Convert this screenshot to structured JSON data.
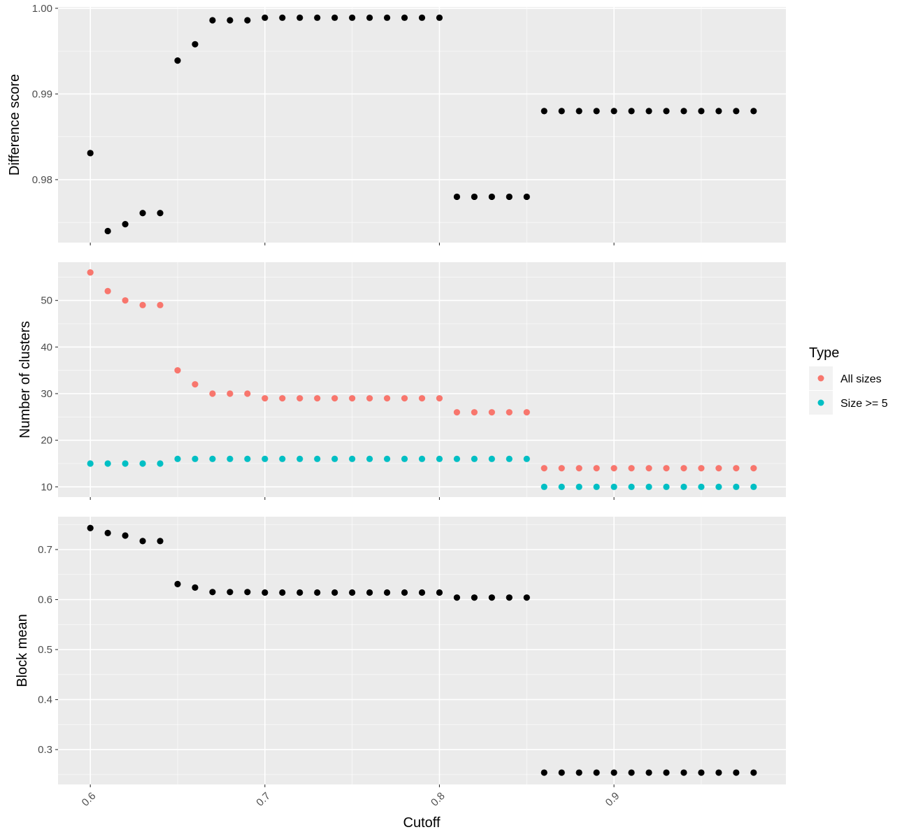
{
  "colors": {
    "panel_bg": "#EBEBEB",
    "grid": "#FFFFFF",
    "all_sizes": "#F8766D",
    "size_ge_5": "#00BFC4",
    "black": "#000000"
  },
  "legend": {
    "title": "Type",
    "items": [
      {
        "label": "All sizes",
        "color": "#F8766D"
      },
      {
        "label": "Size >= 5",
        "color": "#00BFC4"
      }
    ]
  },
  "chart_data": {
    "type": "scatter",
    "layout": "three vertically stacked facets sharing x axis",
    "xlabel": "Cutoff",
    "x_ticks": [
      "0.6",
      "0.7",
      "0.8",
      "0.9"
    ],
    "x_tick_values": [
      0.6,
      0.7,
      0.8,
      0.9
    ],
    "xlim": [
      0.5815,
      0.9985
    ],
    "x": [
      0.6,
      0.61,
      0.62,
      0.63,
      0.64,
      0.65,
      0.66,
      0.67,
      0.68,
      0.69,
      0.7,
      0.71,
      0.72,
      0.73,
      0.74,
      0.75,
      0.76,
      0.77,
      0.78,
      0.79,
      0.8,
      0.81,
      0.82,
      0.83,
      0.84,
      0.85,
      0.86,
      0.87,
      0.88,
      0.89,
      0.9,
      0.91,
      0.92,
      0.93,
      0.94,
      0.95,
      0.96,
      0.97,
      0.98
    ],
    "panels": [
      {
        "ylabel": "Difference score",
        "ylim": [
          0.97265,
          1.00015
        ],
        "y_ticks": [
          "0.98",
          "0.99",
          "1.00"
        ],
        "y_tick_values": [
          0.98,
          0.99,
          1.0
        ],
        "series": [
          {
            "color": "#000000",
            "values": [
              0.9831,
              0.974,
              0.9748,
              0.9761,
              0.9761,
              0.9939,
              0.9958,
              0.9986,
              0.9986,
              0.9986,
              0.9989,
              0.9989,
              0.9989,
              0.9989,
              0.9989,
              0.9989,
              0.9989,
              0.9989,
              0.9989,
              0.9989,
              0.9989,
              0.978,
              0.978,
              0.978,
              0.978,
              0.978,
              0.988,
              0.988,
              0.988,
              0.988,
              0.988,
              0.988,
              0.988,
              0.988,
              0.988,
              0.988,
              0.988,
              0.988,
              0.988
            ]
          }
        ]
      },
      {
        "ylabel": "Number of clusters",
        "ylim": [
          7.8,
          58.2
        ],
        "y_ticks": [
          "10",
          "20",
          "30",
          "40",
          "50"
        ],
        "y_tick_values": [
          10,
          20,
          30,
          40,
          50
        ],
        "series": [
          {
            "name": "All sizes",
            "color": "#F8766D",
            "values": [
              56,
              52,
              50,
              49,
              49,
              35,
              32,
              30,
              30,
              30,
              29,
              29,
              29,
              29,
              29,
              29,
              29,
              29,
              29,
              29,
              29,
              26,
              26,
              26,
              26,
              26,
              14,
              14,
              14,
              14,
              14,
              14,
              14,
              14,
              14,
              14,
              14,
              14,
              14
            ]
          },
          {
            "name": "Size >= 5",
            "color": "#00BFC4",
            "values": [
              15,
              15,
              15,
              15,
              15,
              16,
              16,
              16,
              16,
              16,
              16,
              16,
              16,
              16,
              16,
              16,
              16,
              16,
              16,
              16,
              16,
              16,
              16,
              16,
              16,
              16,
              10,
              10,
              10,
              10,
              10,
              10,
              10,
              10,
              10,
              10,
              10,
              10,
              10
            ]
          }
        ]
      },
      {
        "ylabel": "Block mean",
        "ylim": [
          0.2303,
          0.7657
        ],
        "y_ticks": [
          "0.3",
          "0.4",
          "0.5",
          "0.6",
          "0.7"
        ],
        "y_tick_values": [
          0.3,
          0.4,
          0.5,
          0.6,
          0.7
        ],
        "series": [
          {
            "color": "#000000",
            "values": [
              0.743,
              0.733,
              0.728,
              0.717,
              0.717,
              0.631,
              0.624,
              0.615,
              0.615,
              0.615,
              0.614,
              0.614,
              0.614,
              0.614,
              0.614,
              0.614,
              0.614,
              0.614,
              0.614,
              0.614,
              0.614,
              0.604,
              0.604,
              0.604,
              0.604,
              0.604,
              0.254,
              0.254,
              0.254,
              0.254,
              0.254,
              0.254,
              0.254,
              0.254,
              0.254,
              0.254,
              0.254,
              0.254,
              0.254
            ]
          }
        ]
      }
    ]
  }
}
